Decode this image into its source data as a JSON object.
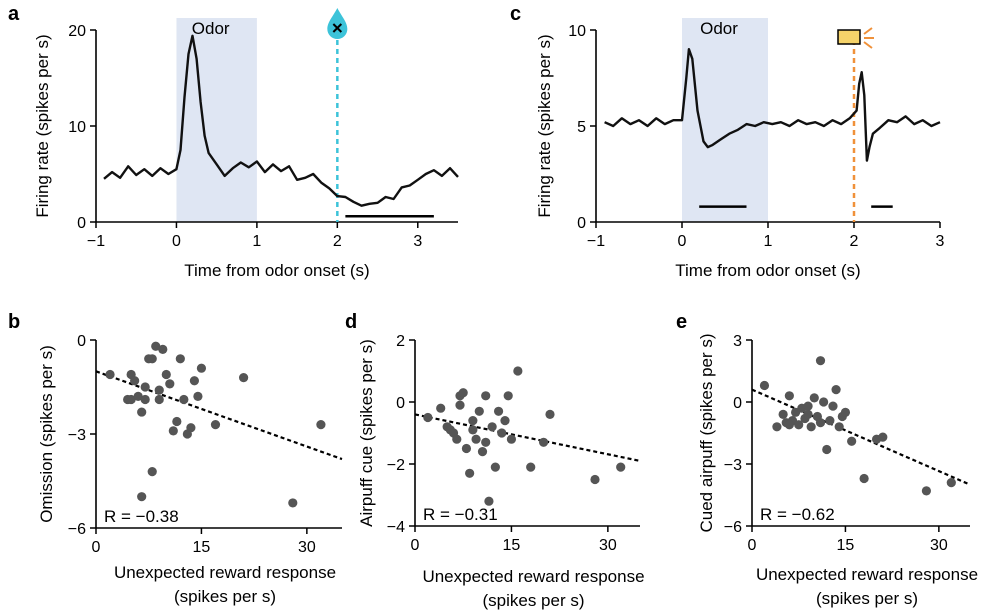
{
  "panels": {
    "a": {
      "label": "a",
      "chart_data": {
        "type": "line",
        "title": "",
        "xlabel": "Time from odor onset (s)",
        "ylabel": "Firing rate (spikes per s)",
        "xlim": [
          -1,
          3.5
        ],
        "ylim": [
          0,
          20
        ],
        "xticks": [
          "−1",
          "0",
          "1",
          "2",
          "3"
        ],
        "yticks": [
          "0",
          "10",
          "20"
        ],
        "shade": {
          "x0": 0,
          "x1": 1,
          "label": "Odor",
          "color": "#dfe6f3"
        },
        "event_line": {
          "x": 2,
          "color": "#3cc3d9",
          "icon": "water-drop-x-icon"
        },
        "sig_bar": {
          "x0": 2.1,
          "x1": 3.2,
          "y": 0.6
        },
        "series": [
          {
            "x": [
              -0.9,
              -0.8,
              -0.7,
              -0.6,
              -0.5,
              -0.4,
              -0.3,
              -0.2,
              -0.1,
              0.0,
              0.05,
              0.1,
              0.15,
              0.2,
              0.25,
              0.3,
              0.35,
              0.4,
              0.5,
              0.6,
              0.7,
              0.8,
              0.9,
              1.0,
              1.1,
              1.2,
              1.3,
              1.4,
              1.5,
              1.6,
              1.7,
              1.8,
              1.9,
              2.0,
              2.1,
              2.2,
              2.3,
              2.4,
              2.5,
              2.6,
              2.7,
              2.8,
              2.9,
              3.0,
              3.1,
              3.2,
              3.3,
              3.4,
              3.5
            ],
            "values": [
              4.5,
              5.2,
              4.6,
              5.8,
              4.9,
              5.5,
              4.8,
              5.6,
              5.0,
              5.5,
              7.5,
              13,
              17.5,
              19.4,
              17,
              12.5,
              9,
              7.2,
              6.0,
              4.8,
              5.6,
              6.2,
              5.7,
              6.3,
              5.2,
              6.0,
              5.3,
              5.8,
              4.4,
              4.6,
              5.0,
              4.1,
              3.5,
              2.7,
              2.6,
              2.1,
              1.7,
              1.9,
              2.0,
              2.6,
              2.4,
              3.6,
              3.8,
              4.4,
              5.0,
              5.4,
              4.8,
              5.6,
              4.7
            ]
          }
        ]
      }
    },
    "c": {
      "label": "c",
      "chart_data": {
        "type": "line",
        "title": "",
        "xlabel": "Time from odor onset (s)",
        "ylabel": "Firing rate (spikes per s)",
        "xlim": [
          -1,
          3
        ],
        "ylim": [
          0,
          10
        ],
        "xticks": [
          "−1",
          "0",
          "1",
          "2",
          "3"
        ],
        "yticks": [
          "0",
          "5",
          "10"
        ],
        "shade": {
          "x0": 0,
          "x1": 1,
          "label": "Odor",
          "color": "#dfe6f3"
        },
        "event_line": {
          "x": 2,
          "color": "#f0913a",
          "icon": "airpuff-icon"
        },
        "sig_bars": [
          {
            "x0": 0.2,
            "x1": 0.75,
            "y": 0.8
          },
          {
            "x0": 2.2,
            "x1": 2.45,
            "y": 0.8
          }
        ],
        "series": [
          {
            "x": [
              -0.9,
              -0.8,
              -0.7,
              -0.6,
              -0.5,
              -0.4,
              -0.3,
              -0.2,
              -0.1,
              0.0,
              0.05,
              0.08,
              0.12,
              0.18,
              0.25,
              0.3,
              0.35,
              0.45,
              0.55,
              0.65,
              0.75,
              0.85,
              0.95,
              1.05,
              1.15,
              1.25,
              1.35,
              1.45,
              1.55,
              1.65,
              1.75,
              1.85,
              1.95,
              2.03,
              2.06,
              2.09,
              2.12,
              2.15,
              2.18,
              2.22,
              2.3,
              2.4,
              2.5,
              2.6,
              2.7,
              2.8,
              2.9,
              3.0
            ],
            "values": [
              5.2,
              5.0,
              5.4,
              5.1,
              5.3,
              5.0,
              5.4,
              5.1,
              5.3,
              5.3,
              7.5,
              9.0,
              8.5,
              5.8,
              4.2,
              3.9,
              4.0,
              4.3,
              4.6,
              4.8,
              5.1,
              5.0,
              5.2,
              5.1,
              5.2,
              5.0,
              5.3,
              5.1,
              5.2,
              5.0,
              5.3,
              5.1,
              5.4,
              5.8,
              7.2,
              7.8,
              6.6,
              3.2,
              3.9,
              4.6,
              4.9,
              5.3,
              5.2,
              5.5,
              5.1,
              5.3,
              5.0,
              5.2
            ]
          }
        ]
      }
    },
    "b": {
      "label": "b",
      "annotation": "R = −0.38",
      "chart_data": {
        "type": "scatter",
        "title": "",
        "xlabel": "Unexpected reward response",
        "xlabel2": "(spikes per s)",
        "ylabel": "Omission (spikes per s)",
        "xlim": [
          0,
          35
        ],
        "ylim": [
          -6,
          0
        ],
        "xticks": [
          "0",
          "15",
          "30"
        ],
        "yticks": [
          "−6",
          "−3",
          "0"
        ],
        "fit": {
          "x0": 0,
          "y0": -1.0,
          "x1": 35,
          "y1": -3.8
        },
        "x": [
          2,
          5,
          5.5,
          4.5,
          5,
          6,
          6.5,
          7,
          7.5,
          8,
          8.5,
          9,
          9.5,
          10,
          10.5,
          11,
          11.5,
          12,
          12.5,
          13,
          13.5,
          14,
          14.5,
          15,
          17,
          21,
          28,
          32,
          6.5,
          7,
          8,
          9
        ],
        "y": [
          -1.1,
          -1.1,
          -1.3,
          -1.9,
          -1.9,
          -1.8,
          -2.3,
          -1.5,
          -0.6,
          -0.6,
          -0.2,
          -1.9,
          -0.3,
          -1.1,
          -1.4,
          -2.9,
          -2.6,
          -0.6,
          -1.9,
          -3.0,
          -2.8,
          -1.3,
          -1.8,
          -0.9,
          -2.7,
          -1.2,
          -5.2,
          -2.7,
          -5.0,
          -1.9,
          -4.2,
          -1.6
        ]
      }
    },
    "d": {
      "label": "d",
      "annotation": "R = −0.31",
      "chart_data": {
        "type": "scatter",
        "title": "",
        "xlabel": "Unexpected reward response",
        "xlabel2": "(spikes per s)",
        "ylabel": "Airpuff cue (spikes per s)",
        "xlim": [
          0,
          35
        ],
        "ylim": [
          -4,
          2
        ],
        "xticks": [
          "0",
          "15",
          "30"
        ],
        "yticks": [
          "−4",
          "−2",
          "0",
          "2"
        ],
        "fit": {
          "x0": 0,
          "y0": -0.4,
          "x1": 35,
          "y1": -1.9
        },
        "x": [
          2,
          4,
          5,
          5.5,
          6,
          6.5,
          7,
          7,
          7.5,
          8,
          8.5,
          9,
          9,
          9.5,
          10,
          10.5,
          11,
          11,
          11.5,
          12,
          12.5,
          13,
          13.5,
          14,
          14.5,
          15,
          16,
          18,
          20,
          21,
          28,
          32
        ],
        "y": [
          -0.5,
          -0.2,
          -0.8,
          -0.9,
          -1.0,
          -1.2,
          -0.1,
          0.2,
          0.3,
          -1.5,
          -2.3,
          -0.9,
          -0.6,
          -1.2,
          -0.3,
          -1.6,
          0.2,
          -1.3,
          -3.2,
          -0.8,
          -2.1,
          -0.3,
          -1.0,
          -0.6,
          0.2,
          -1.2,
          1.0,
          -2.1,
          -1.3,
          -0.4,
          -2.5,
          -2.1
        ]
      }
    },
    "e": {
      "label": "e",
      "annotation": "R = −0.62",
      "chart_data": {
        "type": "scatter",
        "title": "",
        "xlabel": "Unexpected reward response",
        "xlabel2": "(spikes per s)",
        "ylabel": "Cued airpuff (spikes per s)",
        "xlim": [
          0,
          35
        ],
        "ylim": [
          -6,
          3
        ],
        "xticks": [
          "0",
          "15",
          "30"
        ],
        "yticks": [
          "−6",
          "−3",
          "0",
          "3"
        ],
        "fit": {
          "x0": 0,
          "y0": 0.6,
          "x1": 35,
          "y1": -4.0
        },
        "x": [
          2,
          4,
          5,
          5.5,
          6,
          6.5,
          7,
          7.5,
          8,
          8.5,
          9,
          9.5,
          10,
          10.5,
          11,
          11,
          11.5,
          12,
          12.5,
          13,
          13.5,
          14,
          14.5,
          15,
          16,
          18,
          20,
          21,
          28,
          32,
          6,
          9
        ],
        "y": [
          0.8,
          -1.2,
          -0.6,
          -1.0,
          0.3,
          -0.9,
          -0.5,
          -1.1,
          -0.3,
          -0.8,
          -0.6,
          -1.2,
          0.2,
          -0.7,
          2.0,
          -1.0,
          0.0,
          -2.3,
          -0.9,
          -0.2,
          0.6,
          -1.2,
          -0.7,
          -0.5,
          -1.9,
          -3.7,
          -1.8,
          -1.7,
          -4.3,
          -3.9,
          -1.1,
          -0.2
        ]
      }
    }
  }
}
